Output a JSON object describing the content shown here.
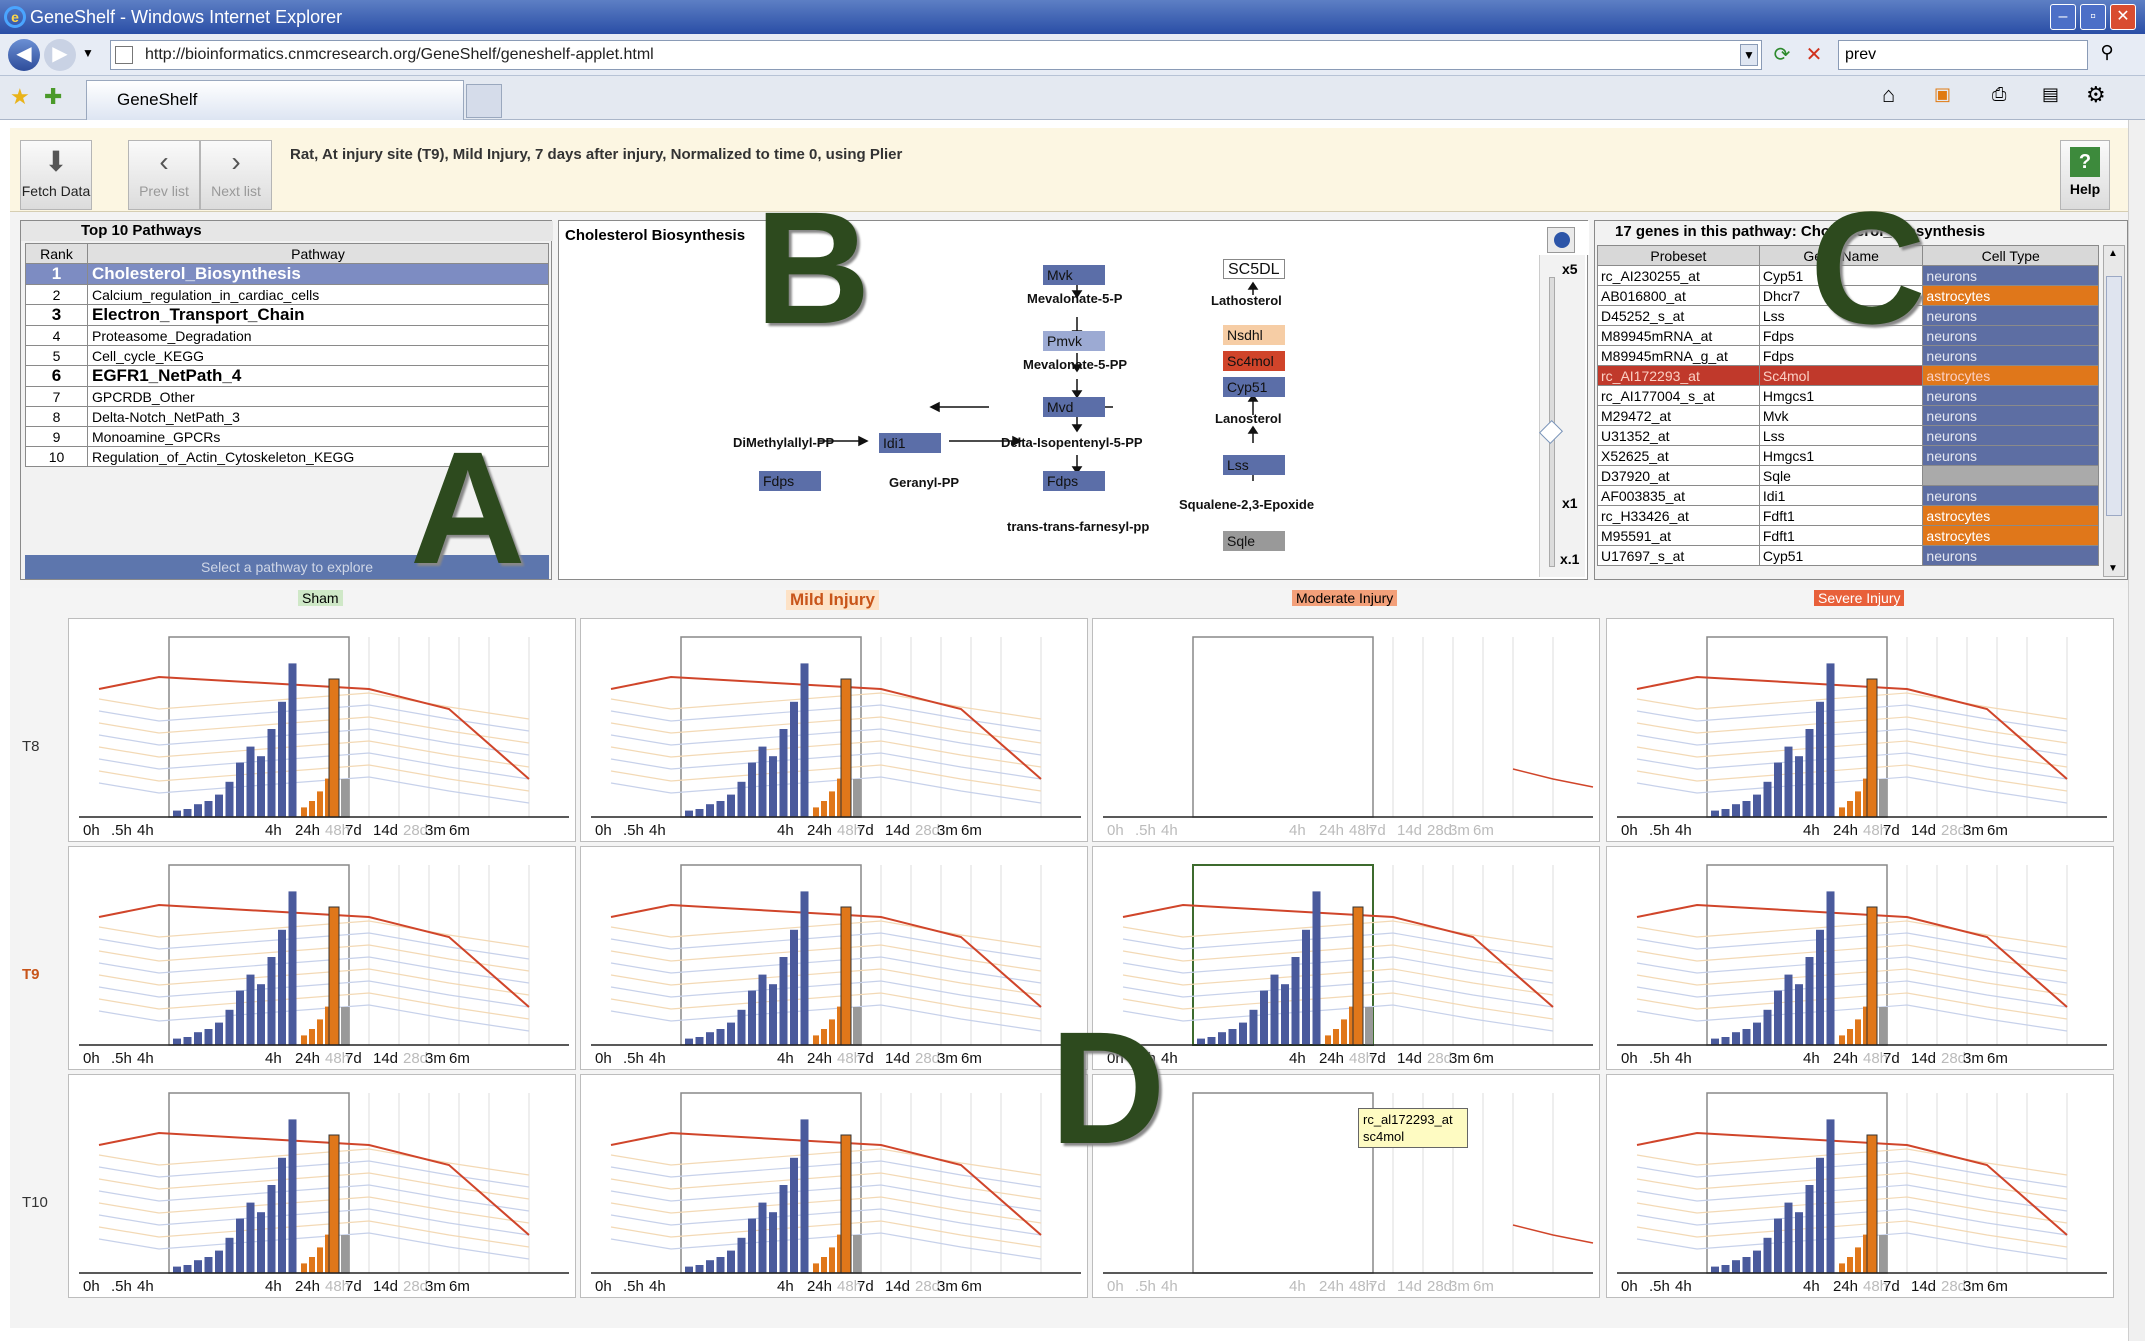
{
  "window": {
    "title": "GeneShelf - Windows Internet Explorer",
    "url": "http://bioinformatics.cnmcresearch.org/GeneShelf/geneshelf-applet.html",
    "search": "prev",
    "tab": "GeneShelf"
  },
  "toolbar": {
    "fetch": "Fetch Data",
    "prev": "Prev list",
    "next": "Next list",
    "help": "Help",
    "status": "Rat, At injury site (T9), Mild Injury, 7 days after injury, Normalized to time 0, using Plier"
  },
  "panelA": {
    "title": "Top 10 Pathways",
    "col_rank": "Rank",
    "col_pathway": "Pathway",
    "rows": [
      {
        "rank": "1",
        "name": "Cholesterol_Biosynthesis"
      },
      {
        "rank": "2",
        "name": "Calcium_regulation_in_cardiac_cells"
      },
      {
        "rank": "3",
        "name": "Electron_Transport_Chain"
      },
      {
        "rank": "4",
        "name": "Proteasome_Degradation"
      },
      {
        "rank": "5",
        "name": "Cell_cycle_KEGG"
      },
      {
        "rank": "6",
        "name": "EGFR1_NetPath_4"
      },
      {
        "rank": "7",
        "name": "GPCRDB_Other"
      },
      {
        "rank": "8",
        "name": "Delta-Notch_NetPath_3"
      },
      {
        "rank": "9",
        "name": "Monoamine_GPCRs"
      },
      {
        "rank": "10",
        "name": "Regulation_of_Actin_Cytoskeleton_KEGG"
      }
    ],
    "select_hint": "Select a pathway to explore",
    "big_label": "A"
  },
  "panelB": {
    "title": "Cholesterol Biosynthesis",
    "zoom_top": "x5",
    "zoom_mid": "x1",
    "zoom_bot": "x.1",
    "genes": {
      "mvk": "Mvk",
      "pmvk": "Pmvk",
      "mvd": "Mvd",
      "idi1": "Idi1",
      "fdps1": "Fdps",
      "fdps2": "Fdps",
      "sc5dl": "SC5DL",
      "nsdhl": "Nsdhl",
      "sc4mol": "Sc4mol",
      "cyp51": "Cyp51",
      "lss": "Lss",
      "sqle": "Sqle"
    },
    "metabolites": {
      "mev5p": "Mevalonate-5-P",
      "mev5pp": "Mevalonate-5-PP",
      "dimeth": "DiMethylallyl-PP",
      "delta": "Delta-Isopentenyl-5-PP",
      "geranyl": "Geranyl-PP",
      "farnesyl": "trans-trans-farnesyl-pp",
      "latho": "Lathosterol",
      "lano": "Lanosterol",
      "squal": "Squalene-2,3-Epoxide"
    },
    "big_label": "B"
  },
  "panelC": {
    "title": "17 genes in this pathway: Cholesterol_Biosynthesis",
    "col_probe": "Probeset",
    "col_gene": "Gene Name",
    "col_type": "Cell Type",
    "rows": [
      {
        "probe": "rc_AI230255_at",
        "gene": "Cyp51",
        "type": "neurons"
      },
      {
        "probe": "AB016800_at",
        "gene": "Dhcr7",
        "type": "astrocytes"
      },
      {
        "probe": "D45252_s_at",
        "gene": "Lss",
        "type": "neurons"
      },
      {
        "probe": "M89945mRNA_at",
        "gene": "Fdps",
        "type": "neurons"
      },
      {
        "probe": "M89945mRNA_g_at",
        "gene": "Fdps",
        "type": "neurons"
      },
      {
        "probe": "rc_AI172293_at",
        "gene": "Sc4mol",
        "type": "astrocytes"
      },
      {
        "probe": "rc_AI177004_s_at",
        "gene": "Hmgcs1",
        "type": "neurons"
      },
      {
        "probe": "M29472_at",
        "gene": "Mvk",
        "type": "neurons"
      },
      {
        "probe": "U31352_at",
        "gene": "Lss",
        "type": "neurons"
      },
      {
        "probe": "X52625_at",
        "gene": "Hmgcs1",
        "type": "neurons"
      },
      {
        "probe": "D37920_at",
        "gene": "Sqle",
        "type": ""
      },
      {
        "probe": "AF003835_at",
        "gene": "Idi1",
        "type": "neurons"
      },
      {
        "probe": "rc_H33426_at",
        "gene": "Fdft1",
        "type": "astrocytes"
      },
      {
        "probe": "M95591_at",
        "gene": "Fdft1",
        "type": "astrocytes"
      },
      {
        "probe": "U17697_s_at",
        "gene": "Cyp51",
        "type": "neurons"
      }
    ],
    "big_label": "C"
  },
  "panelD": {
    "severities": [
      "Sham",
      "Mild Injury",
      "Moderate Injury",
      "Severe Injury"
    ],
    "rows": [
      "T8",
      "T9",
      "T10"
    ],
    "tooltip_probe": "rc_al172293_at",
    "tooltip_gene": "sc4mol",
    "ticks": [
      "0h",
      ".5h",
      "4h",
      "4h",
      "24h",
      "48h",
      "7d",
      "14d",
      "28d",
      "3m",
      "6m"
    ],
    "big_label": "D"
  },
  "colors": {
    "neurons": "#5d6ea3",
    "astrocytes": "#e0771a",
    "highlight": "#c0392b",
    "bar_blue": "#4a5a9c",
    "bar_orange": "#e0771a"
  }
}
